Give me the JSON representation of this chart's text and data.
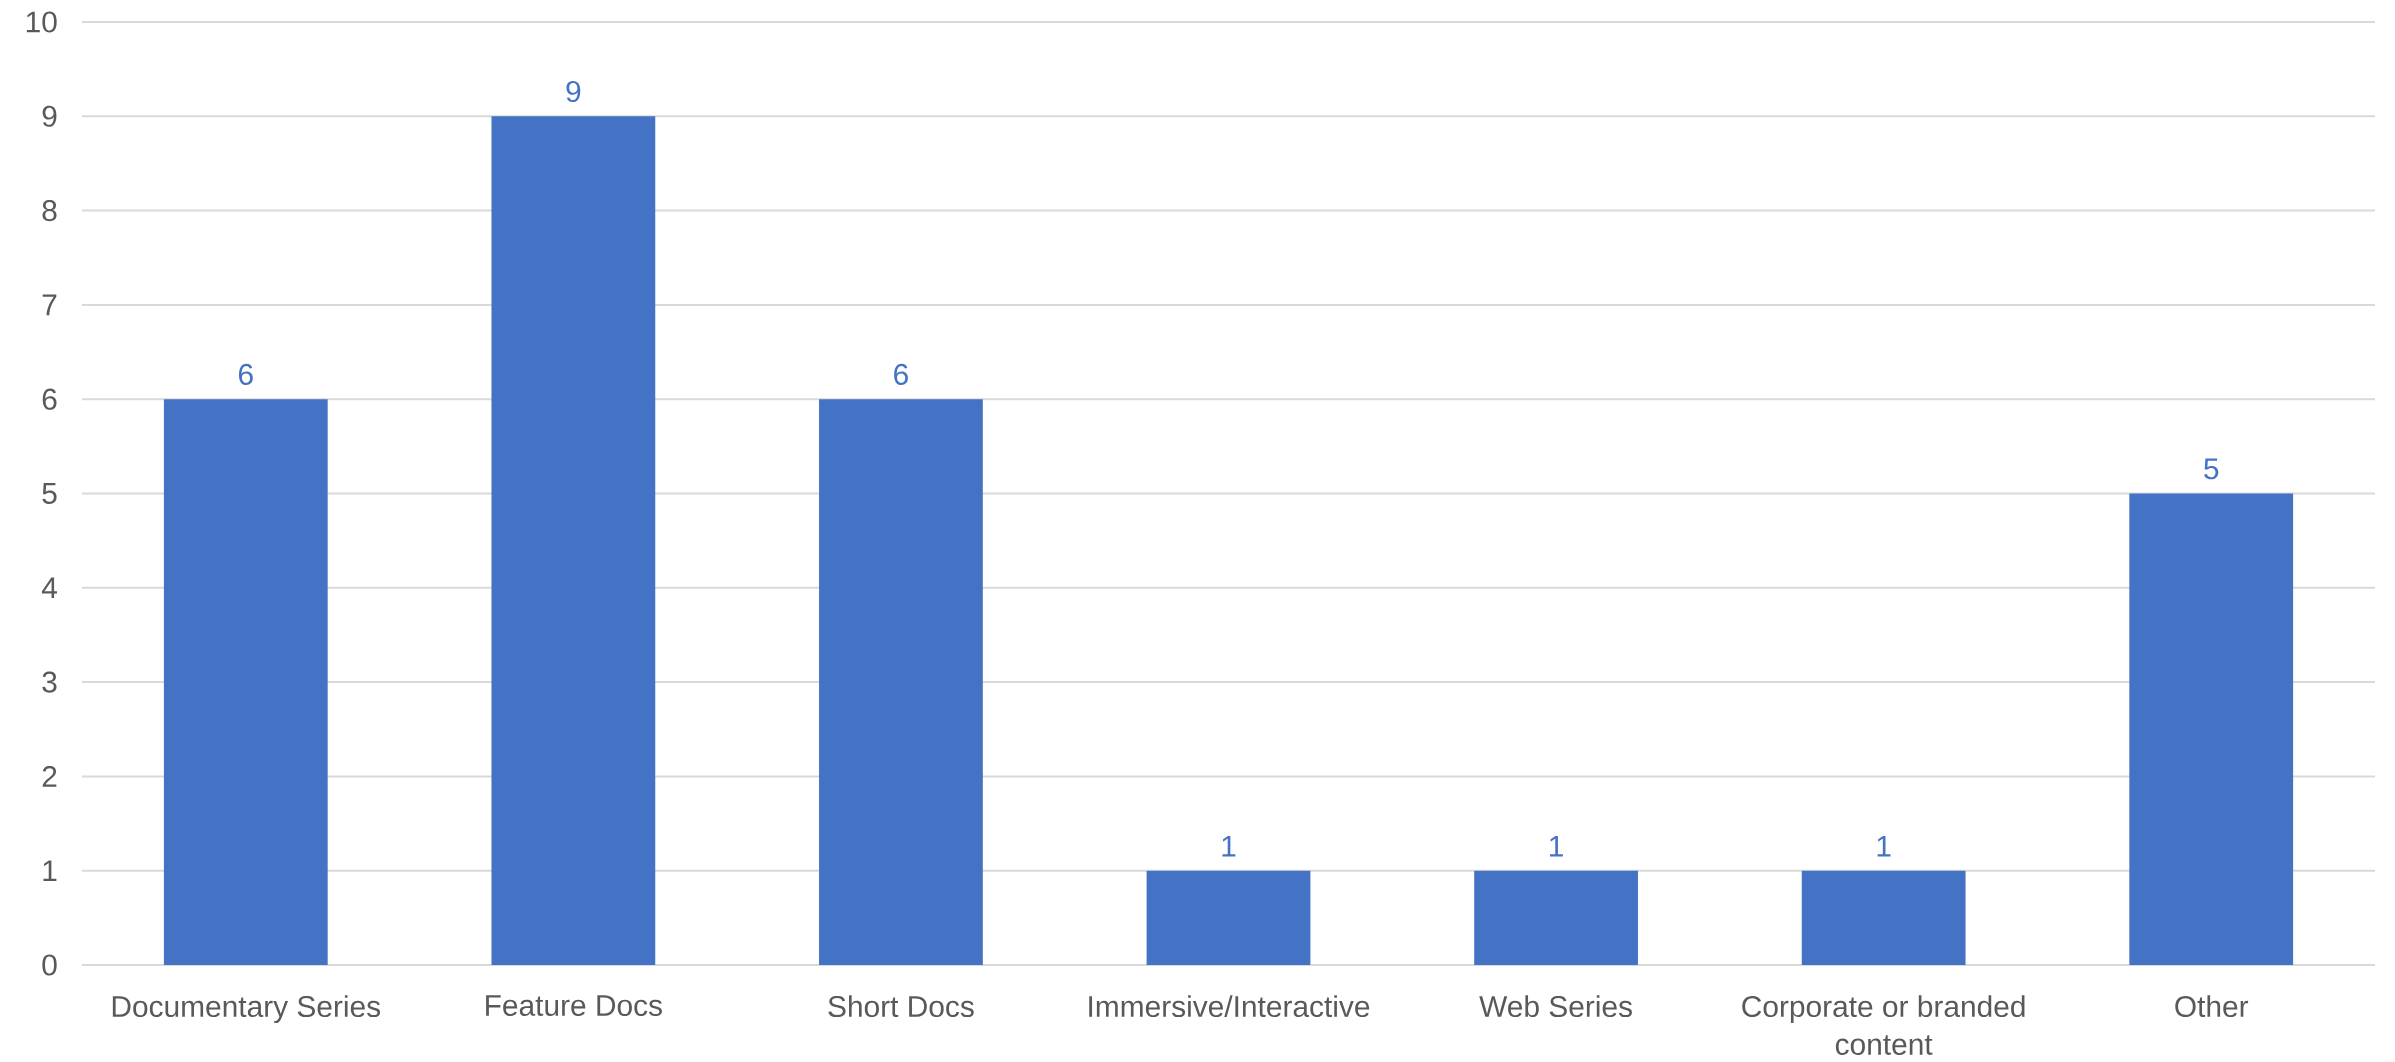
{
  "chart_data": {
    "type": "bar",
    "categories": [
      "Documentary Series",
      "Feature Docs",
      "Short Docs",
      "Immersive/Interactive",
      "Web Series",
      "Corporate or branded content",
      "Other"
    ],
    "values": [
      6,
      9,
      6,
      1,
      1,
      1,
      5
    ],
    "color": "#4472c4",
    "ylim": [
      0,
      10
    ],
    "yticks": [
      0,
      1,
      2,
      3,
      4,
      5,
      6,
      7,
      8,
      9,
      10
    ],
    "grid": "y",
    "data_labels": true
  }
}
